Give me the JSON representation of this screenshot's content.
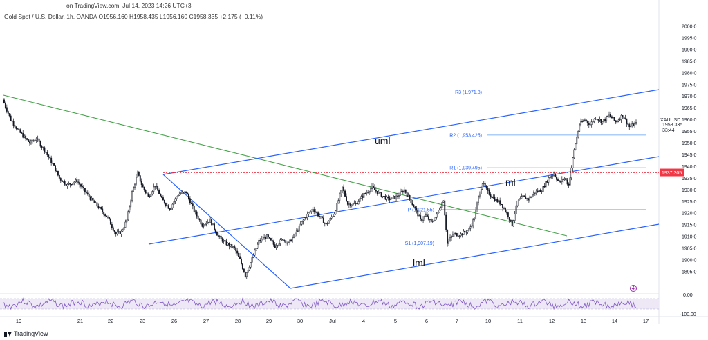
{
  "header": {
    "source": "on TradingView.com, Jul 14, 2023 14:26 UTC+3",
    "symbol_line": "Gold Spot / U.S. Dollar, 1h, OANDA  O1956.160  H1958.435  L1956.160  C1958.335  +2.175 (+0.11%)"
  },
  "brand": {
    "name": "TradingView"
  },
  "colors": {
    "up_candle": "#131722",
    "uml": "#2962ff",
    "channel": "#2962ff",
    "trend": "#43a047",
    "pivot": "#5b9cf6",
    "price_line": "#f23645",
    "rsi": "#7e57c2",
    "rsi_band": "#ede7f6"
  },
  "chart_data": {
    "type": "candlestick",
    "y_range": [
      1890,
      2000
    ],
    "y_ticks": [
      2000.0,
      1995.0,
      1990.0,
      1985.0,
      1980.0,
      1975.0,
      1970.0,
      1965.0,
      1960.0,
      1955.0,
      1950.0,
      1945.0,
      1940.0,
      1935.0,
      1930.0,
      1925.0,
      1920.0,
      1915.0,
      1910.0,
      1905.0,
      1900.0,
      1895.0
    ],
    "y_tick_labels": [
      "2000.0",
      "1995.0",
      "1990.0",
      "1985.0",
      "1980.0",
      "1975.0",
      "1970.0",
      "1965.0",
      "1960.0",
      "1955.0",
      "1950.0",
      "1945.0",
      "1940.0",
      "1935.0",
      "1930.0",
      "1925.0",
      "1920.0",
      "1915.0",
      "1910.0",
      "1905.0",
      "1900.0",
      "1895.0"
    ],
    "x_ticks": [
      "19",
      "21",
      "22",
      "23",
      "26",
      "27",
      "28",
      "29",
      "30",
      "Jul",
      "4",
      "5",
      "6",
      "7",
      "10",
      "11",
      "12",
      "13",
      "14",
      "17"
    ],
    "path": [
      [
        0,
        1968.5
      ],
      [
        6,
        1960
      ],
      [
        12,
        1955
      ],
      [
        20,
        1950
      ],
      [
        25,
        1952
      ],
      [
        32,
        1946
      ],
      [
        38,
        1940
      ],
      [
        42,
        1935
      ],
      [
        48,
        1932
      ],
      [
        55,
        1934
      ],
      [
        60,
        1930
      ],
      [
        67,
        1925
      ],
      [
        72,
        1922
      ],
      [
        78,
        1918
      ],
      [
        84,
        1911
      ],
      [
        88,
        1912
      ],
      [
        92,
        1917
      ],
      [
        96,
        1929
      ],
      [
        100,
        1937
      ],
      [
        104,
        1931
      ],
      [
        108,
        1927
      ],
      [
        113,
        1932
      ],
      [
        118,
        1926
      ],
      [
        124,
        1922
      ],
      [
        130,
        1928
      ],
      [
        136,
        1929
      ],
      [
        142,
        1921
      ],
      [
        148,
        1915
      ],
      [
        154,
        1917
      ],
      [
        160,
        1910
      ],
      [
        166,
        1907
      ],
      [
        172,
        1905
      ],
      [
        176,
        1900
      ],
      [
        180,
        1893.5
      ],
      [
        184,
        1899
      ],
      [
        190,
        1908
      ],
      [
        196,
        1910
      ],
      [
        202,
        1906
      ],
      [
        208,
        1909
      ],
      [
        212,
        1907
      ],
      [
        218,
        1912
      ],
      [
        224,
        1918
      ],
      [
        230,
        1922
      ],
      [
        236,
        1918
      ],
      [
        240,
        1915
      ],
      [
        246,
        1920
      ],
      [
        252,
        1931
      ],
      [
        256,
        1924
      ],
      [
        262,
        1924
      ],
      [
        268,
        1928
      ],
      [
        274,
        1931
      ],
      [
        280,
        1928
      ],
      [
        286,
        1926
      ],
      [
        292,
        1927
      ],
      [
        298,
        1930
      ],
      [
        302,
        1926
      ],
      [
        306,
        1922
      ],
      [
        310,
        1917
      ],
      [
        314,
        1919
      ],
      [
        318,
        1916
      ],
      [
        322,
        1919
      ],
      [
        327,
        1926
      ],
      [
        330,
        1907
      ],
      [
        334,
        1911
      ],
      [
        340,
        1911
      ],
      [
        346,
        1913
      ],
      [
        350,
        1918
      ],
      [
        353,
        1927
      ],
      [
        356,
        1933
      ],
      [
        360,
        1929
      ],
      [
        365,
        1926
      ],
      [
        370,
        1924
      ],
      [
        375,
        1919
      ],
      [
        378,
        1915
      ],
      [
        382,
        1925
      ],
      [
        386,
        1927
      ],
      [
        390,
        1926
      ],
      [
        395,
        1929
      ],
      [
        400,
        1930
      ],
      [
        405,
        1935
      ],
      [
        409,
        1937
      ],
      [
        413,
        1933
      ],
      [
        417,
        1935
      ],
      [
        420,
        1932
      ],
      [
        424,
        1947
      ],
      [
        428,
        1958
      ],
      [
        432,
        1960
      ],
      [
        436,
        1958
      ],
      [
        440,
        1961
      ],
      [
        445,
        1959
      ],
      [
        450,
        1962
      ],
      [
        455,
        1959
      ],
      [
        460,
        1962
      ],
      [
        465,
        1957
      ],
      [
        470,
        1958.3
      ]
    ],
    "annotations": {
      "upper_line": "uml",
      "median_line": "ml",
      "lower_line": "lml"
    },
    "pivot_levels": [
      {
        "label": "R3 (1,971.8)",
        "value": 1971.8
      },
      {
        "label": "R2 (1,953.425)",
        "value": 1953.425
      },
      {
        "label": "R1 (1,939.495)",
        "value": 1939.495
      },
      {
        "label": "P (1,921.55)",
        "value": 1921.55
      },
      {
        "label": "S1 (1,907.19)",
        "value": 1907.19
      }
    ],
    "price_line": {
      "value": 1937.305,
      "label": "1937.305"
    },
    "last_price": {
      "symbol": "XAUUSD",
      "value": "1958.335",
      "countdown": "33:44"
    },
    "rsi": {
      "ticks": [
        "0.00",
        "-100.00"
      ]
    }
  }
}
